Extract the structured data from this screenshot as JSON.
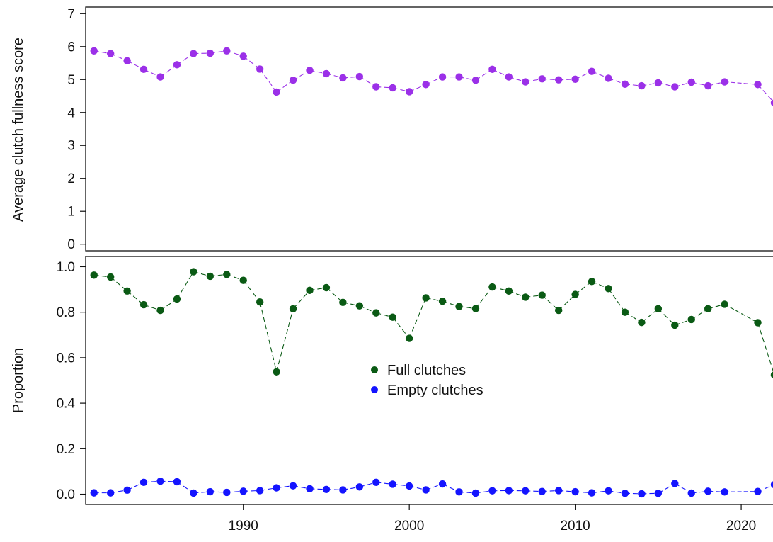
{
  "colors": {
    "fullness": "#9b30e8",
    "full": "#0a5a14",
    "empty": "#1414ff",
    "axis": "#111111",
    "background": "#ffffff"
  },
  "chart_data": [
    {
      "type": "line",
      "panel": "top",
      "ylabel": "Average clutch fullness score",
      "xlim": [
        1980.5,
        2022.3
      ],
      "ylim": [
        -0.2,
        7.2
      ],
      "yticks": [
        "0",
        "1",
        "2",
        "3",
        "4",
        "5",
        "6",
        "7"
      ],
      "grid": false,
      "series": [
        {
          "color": "#9b30e8",
          "x": [
            1981,
            1982,
            1983,
            1984,
            1985,
            1986,
            1987,
            1988,
            1989,
            1990,
            1991,
            1992,
            1993,
            1994,
            1995,
            1996,
            1997,
            1998,
            1999,
            2000,
            2001,
            2002,
            2003,
            2004,
            2005,
            2006,
            2007,
            2008,
            2009,
            2010,
            2011,
            2012,
            2013,
            2014,
            2015,
            2016,
            2017,
            2018,
            2019,
            2021,
            2022
          ],
          "y": [
            5.87,
            5.79,
            5.57,
            5.31,
            5.08,
            5.45,
            5.79,
            5.8,
            5.87,
            5.71,
            5.32,
            4.62,
            4.98,
            5.28,
            5.18,
            5.05,
            5.09,
            4.78,
            4.75,
            4.63,
            4.85,
            5.08,
            5.08,
            4.98,
            5.31,
            5.08,
            4.93,
            5.02,
            4.99,
            5.01,
            5.25,
            5.04,
            4.86,
            4.81,
            4.9,
            4.78,
            4.92,
            4.81,
            4.93,
            4.85,
            4.29
          ]
        }
      ]
    },
    {
      "type": "line",
      "panel": "bottom",
      "ylabel": "Proportion",
      "xlim": [
        1980.5,
        2022.3
      ],
      "ylim": [
        -0.045,
        1.045
      ],
      "yticks": [
        "0.0",
        "0.2",
        "0.4",
        "0.6",
        "0.8",
        "1.0"
      ],
      "xticks": [
        "1990",
        "2000",
        "2010",
        "2020"
      ],
      "grid": false,
      "legend_position": "center",
      "series": [
        {
          "name": "Full clutches",
          "color": "#0a5a14",
          "x": [
            1981,
            1982,
            1983,
            1984,
            1985,
            1986,
            1987,
            1988,
            1989,
            1990,
            1991,
            1992,
            1993,
            1994,
            1995,
            1996,
            1997,
            1998,
            1999,
            2000,
            2001,
            2002,
            2003,
            2004,
            2005,
            2006,
            2007,
            2008,
            2009,
            2010,
            2011,
            2012,
            2013,
            2014,
            2015,
            2016,
            2017,
            2018,
            2019,
            2021,
            2022
          ],
          "y": [
            0.963,
            0.955,
            0.893,
            0.833,
            0.808,
            0.858,
            0.978,
            0.958,
            0.966,
            0.94,
            0.845,
            0.538,
            0.815,
            0.896,
            0.908,
            0.843,
            0.828,
            0.797,
            0.778,
            0.685,
            0.863,
            0.848,
            0.825,
            0.816,
            0.911,
            0.893,
            0.866,
            0.875,
            0.808,
            0.878,
            0.935,
            0.904,
            0.8,
            0.755,
            0.815,
            0.743,
            0.768,
            0.815,
            0.835,
            0.754,
            0.524
          ]
        },
        {
          "name": "Empty clutches",
          "color": "#1414ff",
          "x": [
            1981,
            1982,
            1983,
            1984,
            1985,
            1986,
            1987,
            1988,
            1989,
            1990,
            1991,
            1992,
            1993,
            1994,
            1995,
            1996,
            1997,
            1998,
            1999,
            2000,
            2001,
            2002,
            2003,
            2004,
            2005,
            2006,
            2007,
            2008,
            2009,
            2010,
            2011,
            2012,
            2013,
            2014,
            2015,
            2016,
            2017,
            2018,
            2019,
            2021,
            2022
          ],
          "y": [
            0.006,
            0.006,
            0.018,
            0.052,
            0.057,
            0.055,
            0.005,
            0.011,
            0.008,
            0.013,
            0.016,
            0.028,
            0.037,
            0.024,
            0.021,
            0.019,
            0.032,
            0.052,
            0.044,
            0.036,
            0.019,
            0.045,
            0.01,
            0.005,
            0.015,
            0.016,
            0.015,
            0.012,
            0.016,
            0.011,
            0.006,
            0.015,
            0.004,
            0.002,
            0.004,
            0.047,
            0.005,
            0.013,
            0.01,
            0.012,
            0.042
          ]
        }
      ]
    }
  ]
}
